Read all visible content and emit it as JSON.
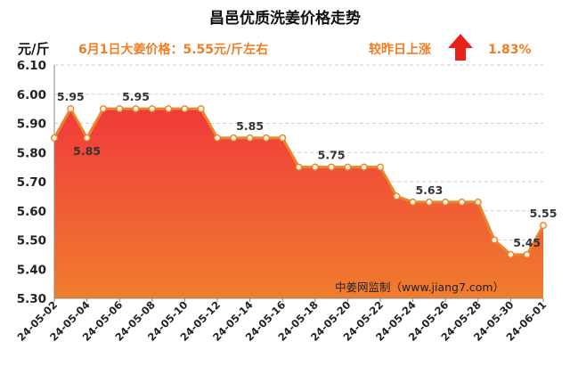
{
  "chart_data": {
    "type": "area",
    "title": "昌邑优质洗姜价格走势",
    "ylabel": "元/斤",
    "headline": "6月1日大姜价格：5.55元/斤左右",
    "change_label": "较昨日上涨",
    "change_value": "1.83%",
    "watermark": "中姜网监制（www.jiang7.com）",
    "ylim": [
      5.3,
      6.1
    ],
    "yticks": [
      5.3,
      5.4,
      5.5,
      5.6,
      5.7,
      5.8,
      5.9,
      6.0,
      6.1
    ],
    "grid": true,
    "x": [
      "24-05-02",
      "24-05-03",
      "24-05-04",
      "24-05-05",
      "24-05-06",
      "24-05-07",
      "24-05-08",
      "24-05-09",
      "24-05-10",
      "24-05-11",
      "24-05-12",
      "24-05-13",
      "24-05-14",
      "24-05-15",
      "24-05-16",
      "24-05-17",
      "24-05-18",
      "24-05-19",
      "24-05-20",
      "24-05-21",
      "24-05-22",
      "24-05-23",
      "24-05-24",
      "24-05-25",
      "24-05-26",
      "24-05-27",
      "24-05-28",
      "24-05-29",
      "24-05-30",
      "24-05-31",
      "24-06-01"
    ],
    "values": [
      5.85,
      5.95,
      5.85,
      5.95,
      5.95,
      5.95,
      5.95,
      5.95,
      5.95,
      5.95,
      5.85,
      5.85,
      5.85,
      5.85,
      5.85,
      5.75,
      5.75,
      5.75,
      5.75,
      5.75,
      5.75,
      5.65,
      5.63,
      5.63,
      5.63,
      5.63,
      5.63,
      5.5,
      5.45,
      5.45,
      5.55
    ],
    "xtick_labels": [
      "24-05-02",
      "24-05-04",
      "24-05-06",
      "24-05-08",
      "24-05-10",
      "24-05-12",
      "24-05-14",
      "24-05-16",
      "24-05-18",
      "24-05-20",
      "24-05-22",
      "24-05-24",
      "24-05-26",
      "24-05-28",
      "24-05-30",
      "24-06-01"
    ],
    "data_labels": [
      {
        "index": 1,
        "text": "5.95"
      },
      {
        "index": 2,
        "text": "5.85"
      },
      {
        "index": 5,
        "text": "5.95"
      },
      {
        "index": 12,
        "text": "5.85"
      },
      {
        "index": 17,
        "text": "5.75"
      },
      {
        "index": 23,
        "text": "5.63"
      },
      {
        "index": 29,
        "text": "5.45"
      },
      {
        "index": 30,
        "text": "5.55"
      }
    ],
    "colors": {
      "line": "#e8862d",
      "area_top": "#f03a3a",
      "area_bottom": "#f07d2d",
      "headline": "#f07d22",
      "arrow": "#e8211a"
    }
  }
}
